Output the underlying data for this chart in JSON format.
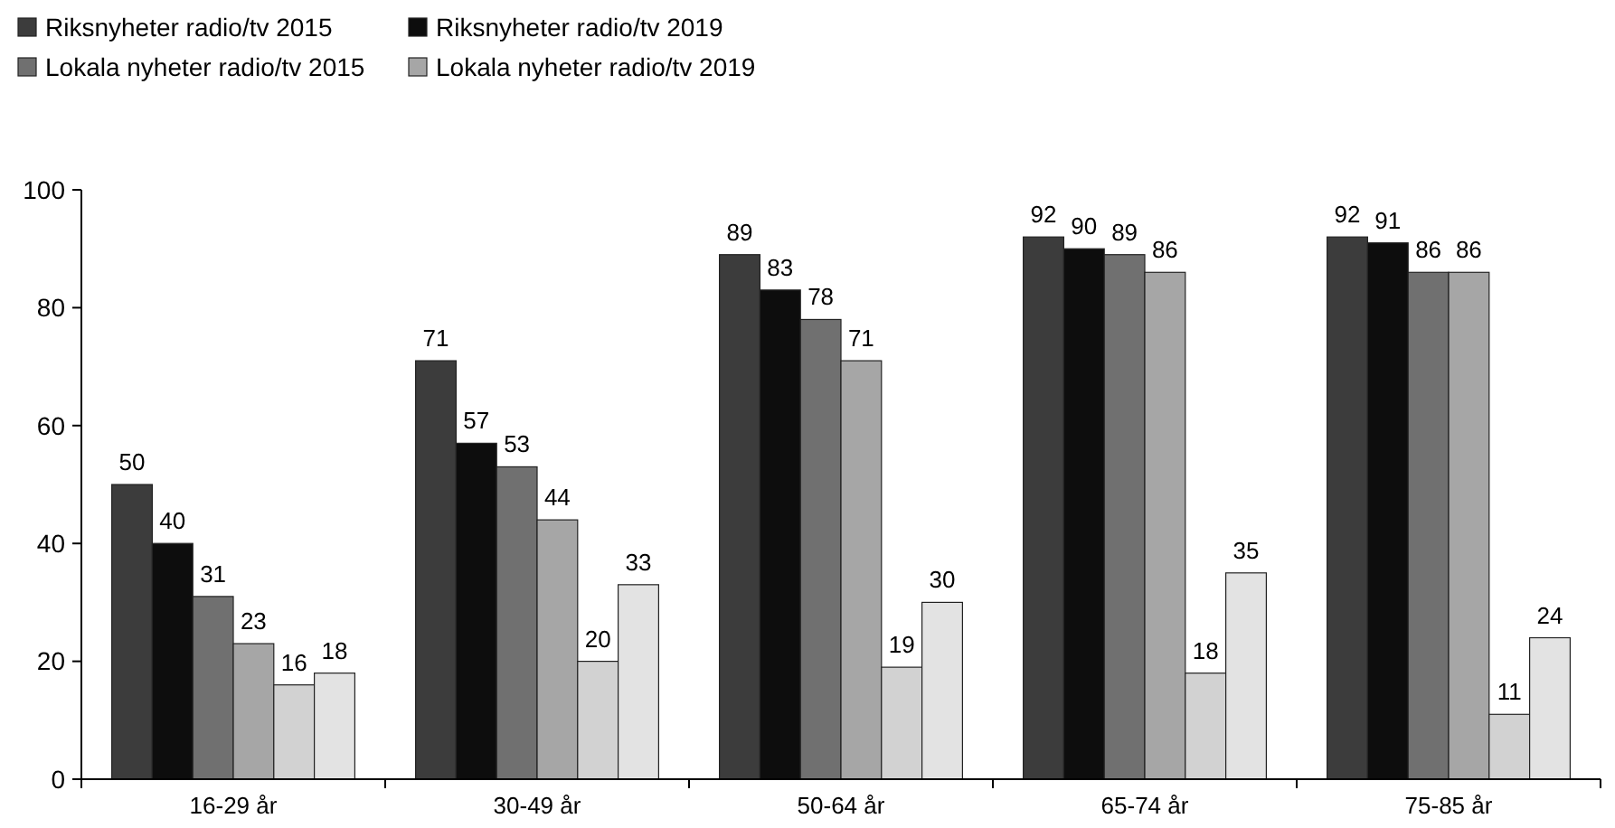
{
  "chart_data": {
    "type": "bar",
    "categories": [
      "16-29 år",
      "30-49 år",
      "50-64 år",
      "65-74 år",
      "75-85 år"
    ],
    "series": [
      {
        "name": "Riksnyheter radio/tv 2015",
        "color": "#3c3c3c",
        "values": [
          50,
          71,
          89,
          92,
          92
        ]
      },
      {
        "name": "Riksnyheter radio/tv 2019",
        "color": "#0d0d0d",
        "values": [
          40,
          57,
          83,
          90,
          91
        ]
      },
      {
        "name": "Lokala nyheter radio/tv 2015",
        "color": "#707070",
        "values": [
          31,
          53,
          78,
          89,
          86
        ]
      },
      {
        "name": "Lokala nyheter radio/tv 2019",
        "color": "#a6a6a6",
        "values": [
          23,
          44,
          71,
          86,
          86
        ]
      },
      {
        "color": "#d2d2d2",
        "values": [
          16,
          20,
          19,
          18,
          11
        ]
      },
      {
        "color": "#e3e3e3",
        "values": [
          18,
          33,
          30,
          35,
          24
        ]
      }
    ],
    "ylim": [
      0,
      100
    ],
    "yticks": [
      0,
      20,
      40,
      60,
      80,
      100
    ],
    "data_labels": true,
    "legend": "top left",
    "grid": false
  }
}
